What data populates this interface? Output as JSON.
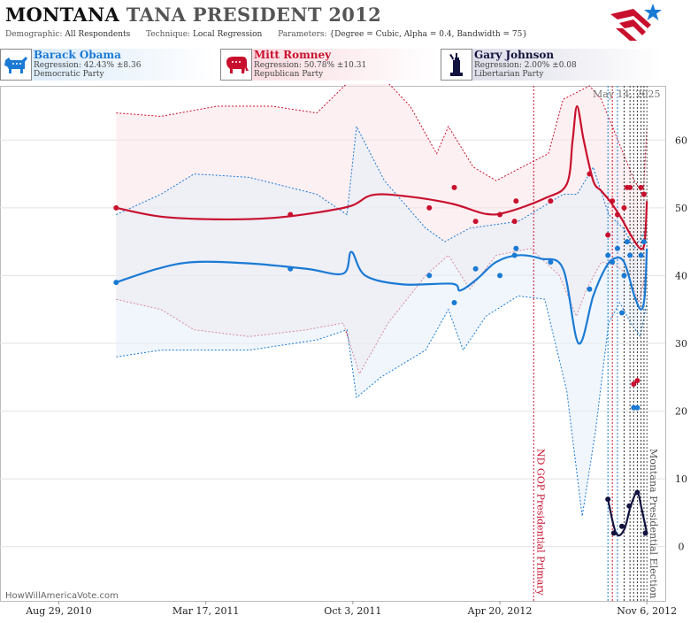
{
  "header": {
    "title_state": "MONTANA",
    "title_rest": "TANA PRESIDENT 2012",
    "demographic_label": "Demographic:",
    "demographic_value": "All Respondents",
    "technique_label": "Technique:",
    "technique_value": "Local Regression",
    "parameters_label": "Parameters:",
    "parameters_value": "{Degree = Cubic, Alpha = 0.4, Bandwidth = 75}"
  },
  "legend": [
    {
      "name": "Barack Obama",
      "regression": "Regression: 42.43% ±8.36",
      "party": "Democratic Party",
      "color": "#1a7ad4",
      "icon": "donkey-icon"
    },
    {
      "name": "Mitt Romney",
      "regression": "Regression: 50.78% ±10.31",
      "party": "Republican Party",
      "color": "#c8102e",
      "icon": "elephant-icon"
    },
    {
      "name": "Gary Johnson",
      "regression": "Regression: 2.00% ±0.08",
      "party": "Libertarian Party",
      "color": "#12123f",
      "icon": "liberty-icon"
    }
  ],
  "as_of": "May 14, 2025",
  "watermark": "HowWillAmericaVote.com",
  "chart_data": {
    "type": "line",
    "x_axis_type": "date",
    "xlim": [
      "2010-06-10",
      "2012-12-01"
    ],
    "ylim": [
      -8,
      68
    ],
    "grid": true,
    "x_tick_labels": [
      {
        "date": "2010-08-29",
        "label": "Aug 29, 2010"
      },
      {
        "date": "2011-03-17",
        "label": "Mar 17, 2011"
      },
      {
        "date": "2011-10-03",
        "label": "Oct 3, 2011"
      },
      {
        "date": "2012-04-20",
        "label": "Apr 20, 2012"
      },
      {
        "date": "2012-11-06",
        "label": "Nov 6, 2012"
      }
    ],
    "y_ticks": [
      0,
      10,
      20,
      30,
      40,
      50,
      60
    ],
    "events": [
      {
        "date": "2012-06-05",
        "label": "ND GOP Presidential Primary",
        "color": "#c8102e"
      },
      {
        "date": "2012-11-06",
        "label": "Montana Presidential Election",
        "color": "#555555"
      }
    ],
    "poll_lines": [
      {
        "date": "2012-09-14",
        "color": "#1a7ad4"
      },
      {
        "date": "2012-09-20",
        "color": "#c8102e"
      },
      {
        "date": "2012-09-27",
        "color": "#1a7ad4"
      },
      {
        "date": "2012-10-06",
        "color": "#333333"
      },
      {
        "date": "2012-10-14",
        "color": "#333333"
      },
      {
        "date": "2012-10-19",
        "color": "#333333"
      },
      {
        "date": "2012-10-24",
        "color": "#333333"
      },
      {
        "date": "2012-10-29",
        "color": "#333333"
      },
      {
        "date": "2012-11-02",
        "color": "#333333"
      }
    ],
    "series": [
      {
        "name": "Mitt Romney",
        "color": "#c8102e",
        "fill": "#fbe3e8",
        "trend": [
          [
            "2010-11-15",
            50
          ],
          [
            "2011-01-15",
            48.7
          ],
          [
            "2011-04-01",
            48.3
          ],
          [
            "2011-06-15",
            48.5
          ],
          [
            "2011-08-15",
            49.3
          ],
          [
            "2011-10-01",
            50.3
          ],
          [
            "2011-10-30",
            51.9
          ],
          [
            "2011-12-15",
            51.7
          ],
          [
            "2012-02-15",
            50.6
          ],
          [
            "2012-04-01",
            49.1
          ],
          [
            "2012-05-01",
            49.4
          ],
          [
            "2012-06-20",
            51.4
          ],
          [
            "2012-07-20",
            53.5
          ],
          [
            "2012-07-28",
            60
          ],
          [
            "2012-08-03",
            65
          ],
          [
            "2012-08-12",
            60
          ],
          [
            "2012-08-25",
            54
          ],
          [
            "2012-09-05",
            52.5
          ],
          [
            "2012-09-18",
            50.8
          ],
          [
            "2012-10-02",
            48.5
          ],
          [
            "2012-10-15",
            46
          ],
          [
            "2012-10-28",
            44
          ],
          [
            "2012-11-03",
            45
          ],
          [
            "2012-11-06",
            51
          ]
        ],
        "upper": [
          [
            "2010-11-15",
            64
          ],
          [
            "2011-01-15",
            63.5
          ],
          [
            "2011-04-01",
            65
          ],
          [
            "2011-06-15",
            65
          ],
          [
            "2011-08-15",
            64
          ],
          [
            "2011-10-01",
            69
          ],
          [
            "2011-11-15",
            69
          ],
          [
            "2011-12-20",
            65
          ],
          [
            "2012-01-25",
            58
          ],
          [
            "2012-02-10",
            62
          ],
          [
            "2012-03-15",
            56
          ],
          [
            "2012-04-15",
            54
          ],
          [
            "2012-05-20",
            56
          ],
          [
            "2012-06-25",
            58
          ],
          [
            "2012-07-15",
            66
          ],
          [
            "2012-08-20",
            68
          ],
          [
            "2012-09-05",
            66
          ],
          [
            "2012-09-20",
            62
          ],
          [
            "2012-10-05",
            58
          ],
          [
            "2012-10-20",
            54
          ],
          [
            "2012-11-01",
            52
          ],
          [
            "2012-11-06",
            62
          ]
        ],
        "lower": [
          [
            "2010-11-15",
            36.5
          ],
          [
            "2011-01-15",
            35
          ],
          [
            "2011-03-01",
            32
          ],
          [
            "2011-05-15",
            31
          ],
          [
            "2011-08-01",
            32
          ],
          [
            "2011-09-20",
            33
          ],
          [
            "2011-10-12",
            25.5
          ],
          [
            "2011-11-20",
            33
          ],
          [
            "2012-01-10",
            40
          ],
          [
            "2012-02-10",
            43
          ],
          [
            "2012-03-10",
            38
          ],
          [
            "2012-04-15",
            43
          ],
          [
            "2012-06-01",
            44
          ],
          [
            "2012-07-10",
            40
          ],
          [
            "2012-08-02",
            34
          ],
          [
            "2012-08-16",
            38
          ],
          [
            "2012-09-05",
            42
          ],
          [
            "2012-09-25",
            41.5
          ],
          [
            "2012-10-12",
            40
          ],
          [
            "2012-10-26",
            36
          ],
          [
            "2012-11-06",
            41
          ]
        ],
        "points": [
          [
            "2010-11-15",
            50
          ],
          [
            "2011-07-10",
            49
          ],
          [
            "2012-01-15",
            50
          ],
          [
            "2012-02-18",
            53
          ],
          [
            "2012-03-18",
            48
          ],
          [
            "2012-04-20",
            49
          ],
          [
            "2012-05-10",
            48
          ],
          [
            "2012-05-12",
            51
          ],
          [
            "2012-06-28",
            51
          ],
          [
            "2012-08-20",
            55
          ],
          [
            "2012-09-14",
            46
          ],
          [
            "2012-09-20",
            51
          ],
          [
            "2012-09-27",
            49
          ],
          [
            "2012-10-06",
            50
          ],
          [
            "2012-10-10",
            53
          ],
          [
            "2012-10-14",
            53
          ],
          [
            "2012-10-19",
            24
          ],
          [
            "2012-10-24",
            24.5
          ],
          [
            "2012-10-29",
            53
          ],
          [
            "2012-11-02",
            52
          ]
        ]
      },
      {
        "name": "Barack Obama",
        "color": "#1a7ad4",
        "fill": "#e4eefa",
        "trend": [
          [
            "2010-11-15",
            39
          ],
          [
            "2011-01-10",
            41
          ],
          [
            "2011-03-01",
            42
          ],
          [
            "2011-05-15",
            41.8
          ],
          [
            "2011-08-01",
            41
          ],
          [
            "2011-09-20",
            40.3
          ],
          [
            "2011-10-01",
            43.5
          ],
          [
            "2011-10-20",
            40
          ],
          [
            "2011-12-10",
            38.7
          ],
          [
            "2012-02-15",
            38.8
          ],
          [
            "2012-02-26",
            37.8
          ],
          [
            "2012-03-20",
            39.5
          ],
          [
            "2012-04-15",
            42
          ],
          [
            "2012-05-15",
            43
          ],
          [
            "2012-06-15",
            42.5
          ],
          [
            "2012-07-15",
            41
          ],
          [
            "2012-08-05",
            30
          ],
          [
            "2012-08-25",
            37
          ],
          [
            "2012-09-10",
            41
          ],
          [
            "2012-09-22",
            42.5
          ],
          [
            "2012-10-06",
            42
          ],
          [
            "2012-10-20",
            37
          ],
          [
            "2012-10-29",
            35
          ],
          [
            "2012-11-03",
            37
          ],
          [
            "2012-11-06",
            44
          ]
        ],
        "upper": [
          [
            "2010-11-15",
            49
          ],
          [
            "2011-01-15",
            52
          ],
          [
            "2011-03-01",
            55
          ],
          [
            "2011-05-15",
            54.5
          ],
          [
            "2011-08-15",
            52
          ],
          [
            "2011-09-25",
            49
          ],
          [
            "2011-10-08",
            62
          ],
          [
            "2011-11-15",
            54
          ],
          [
            "2012-01-10",
            47
          ],
          [
            "2012-02-05",
            45
          ],
          [
            "2012-03-10",
            47
          ],
          [
            "2012-05-15",
            48
          ],
          [
            "2012-06-15",
            50
          ],
          [
            "2012-07-15",
            52
          ],
          [
            "2012-08-03",
            52
          ],
          [
            "2012-08-25",
            56
          ],
          [
            "2012-09-15",
            49
          ],
          [
            "2012-10-05",
            47
          ],
          [
            "2012-10-20",
            44
          ],
          [
            "2012-11-06",
            47
          ]
        ],
        "lower": [
          [
            "2010-11-15",
            28
          ],
          [
            "2011-01-15",
            29
          ],
          [
            "2011-03-10",
            29
          ],
          [
            "2011-05-15",
            29
          ],
          [
            "2011-08-15",
            30.5
          ],
          [
            "2011-09-25",
            32
          ],
          [
            "2011-10-08",
            22
          ],
          [
            "2011-11-10",
            25
          ],
          [
            "2012-01-10",
            29
          ],
          [
            "2012-02-10",
            35
          ],
          [
            "2012-03-01",
            29
          ],
          [
            "2012-04-01",
            34
          ],
          [
            "2012-05-15",
            37
          ],
          [
            "2012-06-20",
            36.5
          ],
          [
            "2012-07-20",
            23
          ],
          [
            "2012-08-10",
            4.5
          ],
          [
            "2012-08-28",
            17
          ],
          [
            "2012-09-15",
            33
          ],
          [
            "2012-09-30",
            36
          ],
          [
            "2012-10-15",
            33
          ],
          [
            "2012-10-28",
            31
          ],
          [
            "2012-11-06",
            36
          ]
        ],
        "points": [
          [
            "2010-11-15",
            39
          ],
          [
            "2011-07-10",
            41
          ],
          [
            "2012-01-15",
            40
          ],
          [
            "2012-02-18",
            36
          ],
          [
            "2012-03-18",
            41
          ],
          [
            "2012-04-20",
            40
          ],
          [
            "2012-05-10",
            43
          ],
          [
            "2012-05-12",
            44
          ],
          [
            "2012-06-28",
            42
          ],
          [
            "2012-08-20",
            38
          ],
          [
            "2012-09-14",
            43
          ],
          [
            "2012-09-20",
            42
          ],
          [
            "2012-09-27",
            44
          ],
          [
            "2012-10-03",
            34.5
          ],
          [
            "2012-10-06",
            40
          ],
          [
            "2012-10-10",
            45
          ],
          [
            "2012-10-14",
            43
          ],
          [
            "2012-10-19",
            20.5
          ],
          [
            "2012-10-24",
            20.5
          ],
          [
            "2012-10-29",
            43
          ],
          [
            "2012-11-02",
            45
          ]
        ]
      },
      {
        "name": "Gary Johnson",
        "color": "#12123f",
        "trend": [
          [
            "2012-09-14",
            7
          ],
          [
            "2012-09-25",
            2
          ],
          [
            "2012-10-06",
            2.5
          ],
          [
            "2012-10-15",
            6
          ],
          [
            "2012-10-24",
            8
          ],
          [
            "2012-10-30",
            5.5
          ],
          [
            "2012-11-06",
            2
          ]
        ],
        "points": [
          [
            "2012-09-14",
            7
          ],
          [
            "2012-09-22",
            2
          ],
          [
            "2012-10-03",
            3
          ],
          [
            "2012-10-13",
            6
          ],
          [
            "2012-10-24",
            8
          ],
          [
            "2012-11-04",
            2
          ]
        ]
      }
    ]
  }
}
